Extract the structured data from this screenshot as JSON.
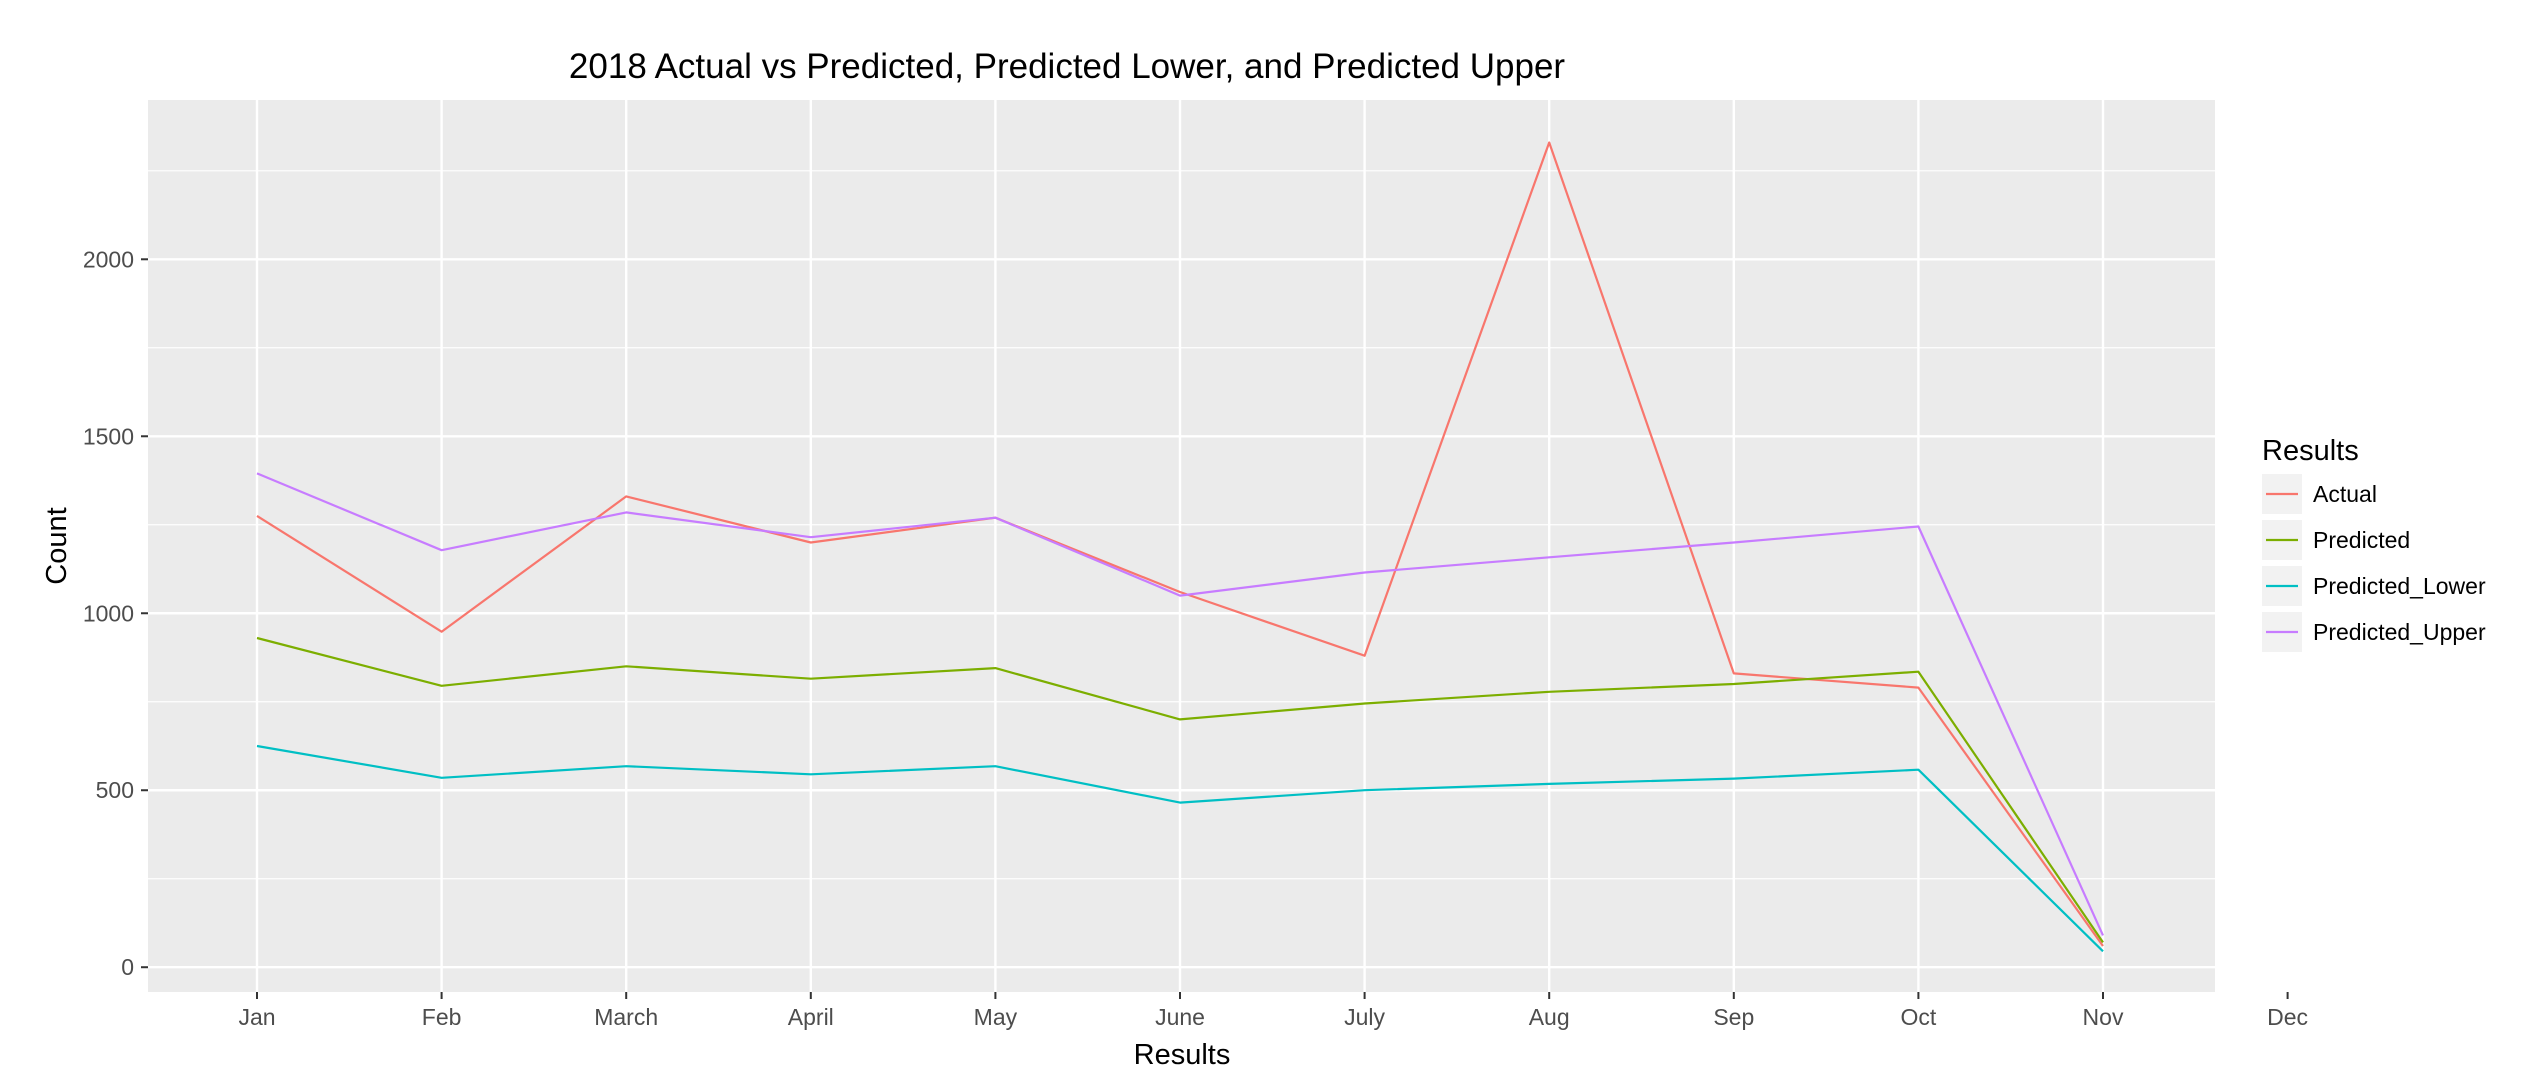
{
  "chart_data": {
    "type": "line",
    "title": "2018 Actual vs Predicted, Predicted Lower, and Predicted Upper",
    "xlabel": "Results",
    "ylabel": "Count",
    "categories": [
      "Jan",
      "Feb",
      "March",
      "April",
      "May",
      "June",
      "July",
      "Aug",
      "Sep",
      "Oct",
      "Nov",
      "Dec"
    ],
    "yticks": [
      0,
      500,
      1000,
      1500,
      2000
    ],
    "ylim": [
      -70,
      2450
    ],
    "grid": true,
    "legend": {
      "title": "Results",
      "position": "right"
    },
    "series": [
      {
        "name": "Actual",
        "color": "#F8766D",
        "values": [
          1275,
          948,
          1330,
          1200,
          1270,
          1060,
          880,
          2330,
          830,
          790,
          60,
          null
        ]
      },
      {
        "name": "Predicted",
        "color": "#7CAE00",
        "values": [
          930,
          795,
          850,
          815,
          845,
          700,
          745,
          778,
          800,
          835,
          70,
          null
        ]
      },
      {
        "name": "Predicted_Lower",
        "color": "#00BFC4",
        "values": [
          625,
          535,
          568,
          545,
          568,
          465,
          500,
          518,
          533,
          558,
          45,
          null
        ]
      },
      {
        "name": "Predicted_Upper",
        "color": "#C77CFF",
        "values": [
          1395,
          1178,
          1285,
          1215,
          1270,
          1050,
          1115,
          1158,
          1200,
          1245,
          90,
          null
        ]
      }
    ]
  }
}
